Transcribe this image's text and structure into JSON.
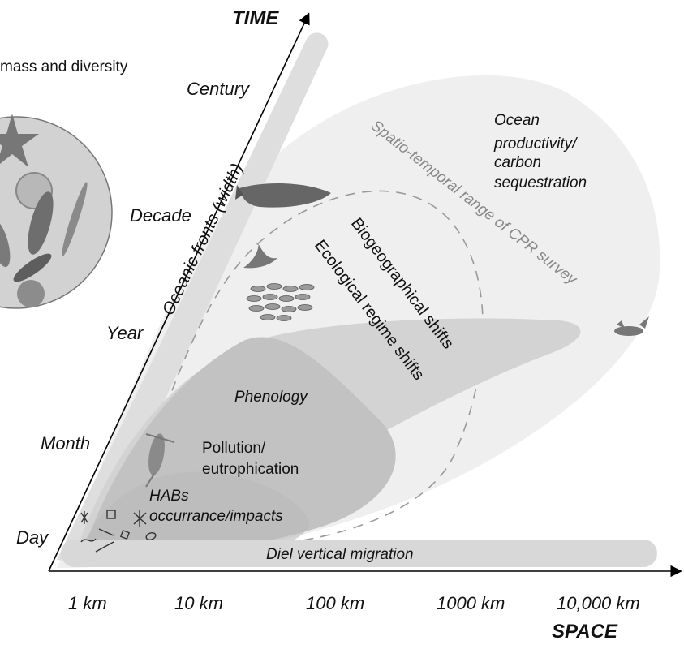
{
  "axes": {
    "time_title": "TIME",
    "space_title": "SPACE",
    "time_ticks": [
      "Century",
      "Decade",
      "Year",
      "Month",
      "Day"
    ],
    "space_ticks": [
      "1 km",
      "10 km",
      "100 km",
      "1000 km",
      "10,000 km"
    ]
  },
  "inset": {
    "caption": "mass and diversity"
  },
  "regions": {
    "ocean_productivity": [
      "Ocean",
      "productivity/",
      "carbon",
      "sequestration"
    ],
    "cpr_range": "Spatio-temporal range of CPR survey",
    "biogeographical": "Biogeographical shifts",
    "ecological_regime": "Ecological regime shifts",
    "oceanic_fronts": "Oceanic fronts (width)",
    "phenology": "Phenology",
    "pollution": [
      "Pollution/",
      "eutrophication"
    ],
    "habs": [
      "HABs",
      "occurrance/impacts"
    ],
    "diel": "Diel vertical migration"
  },
  "colors": {
    "outer_region": "#eeeeee",
    "fronts_bar": "#dcdcdc",
    "mid_region": "#d0d0d0",
    "inner_region": "#bdbdbd",
    "diel_bar": "#d6d6d6",
    "axis": "#000000",
    "dashed_range": "#9a9a9a"
  }
}
